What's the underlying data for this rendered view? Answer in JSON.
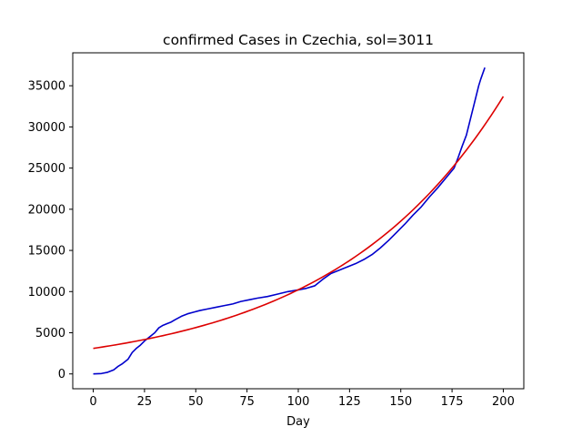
{
  "chart_data": {
    "type": "line",
    "title": "confirmed Cases in Czechia, sol=3011",
    "xlabel": "Day",
    "ylabel": "",
    "xlim": [
      -10,
      210
    ],
    "ylim": [
      -1800,
      39000
    ],
    "xticks": [
      0,
      25,
      50,
      75,
      100,
      125,
      150,
      175,
      200
    ],
    "yticks": [
      0,
      5000,
      10000,
      15000,
      20000,
      25000,
      30000,
      35000
    ],
    "grid": false,
    "series": [
      {
        "color": "#0000cc",
        "x": [
          0,
          4,
          7,
          10,
          12,
          14,
          17,
          19,
          21,
          23,
          25,
          28,
          30,
          32,
          34,
          36,
          38,
          40,
          43,
          46,
          49,
          52,
          56,
          60,
          64,
          68,
          72,
          76,
          80,
          85,
          90,
          95,
          100,
          104,
          108,
          112,
          116,
          120,
          124,
          128,
          132,
          136,
          140,
          144,
          148,
          152,
          156,
          160,
          164,
          168,
          172,
          176,
          178,
          180,
          182,
          184,
          186,
          188,
          189,
          191
        ],
        "values": [
          0,
          50,
          200,
          500,
          900,
          1200,
          1800,
          2600,
          3100,
          3500,
          4000,
          4600,
          5000,
          5600,
          5900,
          6100,
          6300,
          6600,
          7000,
          7300,
          7500,
          7700,
          7900,
          8100,
          8300,
          8500,
          8800,
          9000,
          9200,
          9400,
          9700,
          10000,
          10200,
          10400,
          10700,
          11500,
          12200,
          12600,
          13000,
          13400,
          13900,
          14500,
          15300,
          16200,
          17200,
          18200,
          19300,
          20300,
          21500,
          22600,
          23800,
          25000,
          26300,
          27700,
          29000,
          31000,
          33000,
          35000,
          35800,
          37200
        ]
      },
      {
        "color": "#dd0000",
        "fit": {
          "a": 3100,
          "b": 0.01193
        },
        "x": [
          0,
          200
        ],
        "values": [
          3100,
          33800
        ]
      }
    ]
  }
}
